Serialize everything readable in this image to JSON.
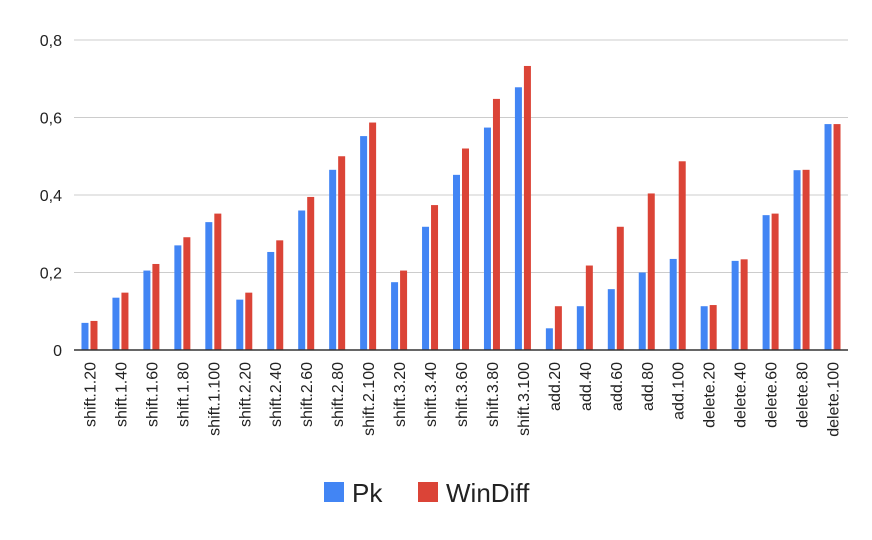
{
  "chart_data": {
    "type": "bar",
    "categories": [
      "shift.1.20",
      "shift.1.40",
      "shift.1.60",
      "shift.1.80",
      "shift.1.100",
      "shift.2.20",
      "shift.2.40",
      "shift.2.60",
      "shift.2.80",
      "shift.2.100",
      "shift.3.20",
      "shift.3.40",
      "shift.3.60",
      "shift.3.80",
      "shift.3.100",
      "add.20",
      "add.40",
      "add.60",
      "add.80",
      "add.100",
      "delete.20",
      "delete.40",
      "delete.60",
      "delete.80",
      "delete.100"
    ],
    "series": [
      {
        "name": "Pk",
        "color": "#4285f4",
        "values": [
          0.07,
          0.135,
          0.205,
          0.27,
          0.33,
          0.13,
          0.253,
          0.36,
          0.465,
          0.552,
          0.175,
          0.318,
          0.452,
          0.574,
          0.678,
          0.056,
          0.113,
          0.157,
          0.2,
          0.235,
          0.113,
          0.23,
          0.348,
          0.464,
          0.583
        ]
      },
      {
        "name": "WinDiff",
        "color": "#db4437",
        "values": [
          0.075,
          0.148,
          0.222,
          0.291,
          0.352,
          0.148,
          0.283,
          0.395,
          0.5,
          0.587,
          0.205,
          0.374,
          0.52,
          0.648,
          0.733,
          0.113,
          0.218,
          0.318,
          0.404,
          0.487,
          0.116,
          0.234,
          0.352,
          0.465,
          0.583
        ]
      }
    ],
    "ylim": [
      0,
      0.8
    ],
    "yticks": [
      0,
      0.2,
      0.4,
      0.6,
      0.8
    ],
    "ytick_labels": [
      "0",
      "0,2",
      "0,4",
      "0,6",
      "0,8"
    ],
    "grid": true,
    "legend_position": "bottom",
    "title": "",
    "xlabel": "",
    "ylabel": ""
  }
}
